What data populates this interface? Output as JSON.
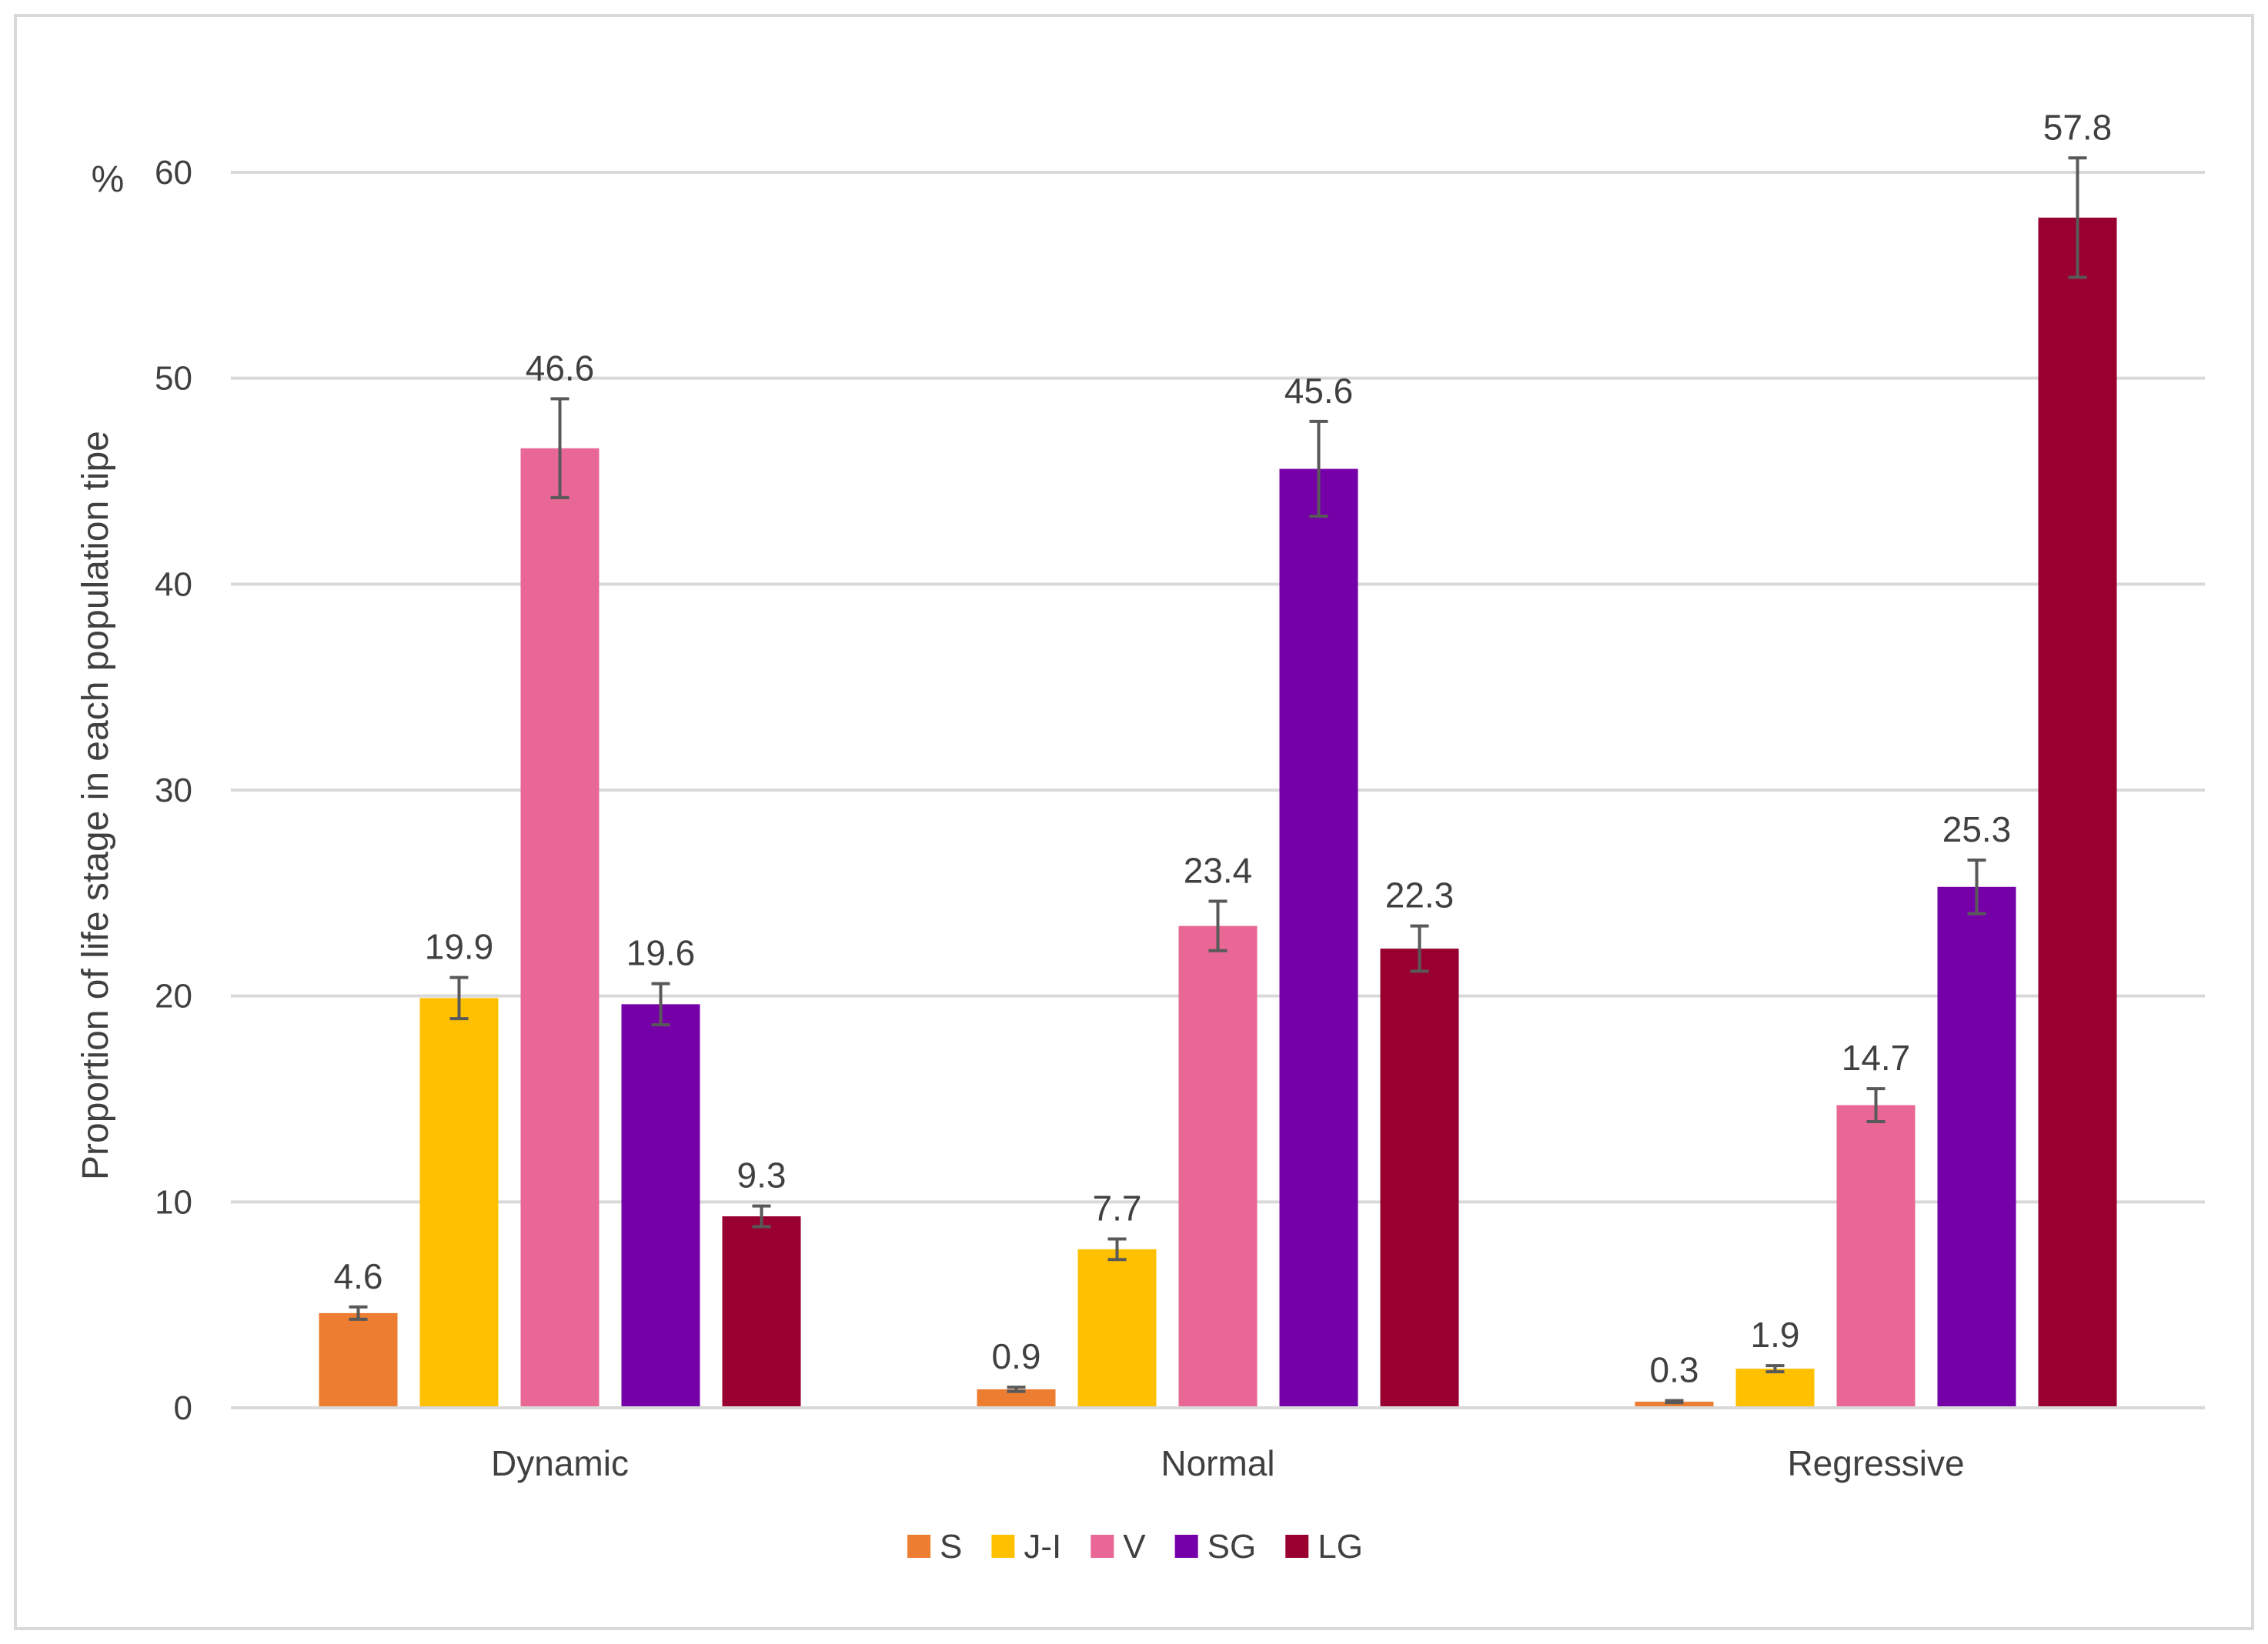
{
  "chart_data": {
    "type": "bar",
    "title": "",
    "xlabel": "",
    "ylabel": "Proportion of life  stage in each population tipe",
    "y_unit_label": "%",
    "ylim": [
      0,
      60
    ],
    "yticks": [
      0,
      10,
      20,
      30,
      40,
      50,
      60
    ],
    "grid": true,
    "legend_position": "bottom",
    "categories": [
      "Dynamic",
      "Normal",
      "Regressive"
    ],
    "series": [
      {
        "name": "S",
        "color": "#ED7D31",
        "values": [
          4.6,
          0.9,
          0.3
        ],
        "errors": [
          0.3,
          0.1,
          0.05
        ]
      },
      {
        "name": "J-I",
        "color": "#FFC000",
        "values": [
          19.9,
          7.7,
          1.9
        ],
        "errors": [
          1.0,
          0.5,
          0.15
        ]
      },
      {
        "name": "V",
        "color": "#E86795",
        "values": [
          46.6,
          23.4,
          14.7
        ],
        "errors": [
          2.4,
          1.2,
          0.8
        ]
      },
      {
        "name": "SG",
        "color": "#7600A8",
        "values": [
          19.6,
          45.6,
          25.3
        ],
        "errors": [
          1.0,
          2.3,
          1.3
        ]
      },
      {
        "name": "LG",
        "color": "#990030",
        "values": [
          9.3,
          22.3,
          57.8
        ],
        "errors": [
          0.5,
          1.1,
          2.9
        ]
      }
    ],
    "data_labels": [
      [
        "4.6",
        "0.9",
        "0.3"
      ],
      [
        "19.9",
        "7.7",
        "1.9"
      ],
      [
        "46.6",
        "23.4",
        "14.7"
      ],
      [
        "19.6",
        "45.6",
        "25.3"
      ],
      [
        "9.3",
        "22.3",
        "57.8"
      ]
    ]
  }
}
